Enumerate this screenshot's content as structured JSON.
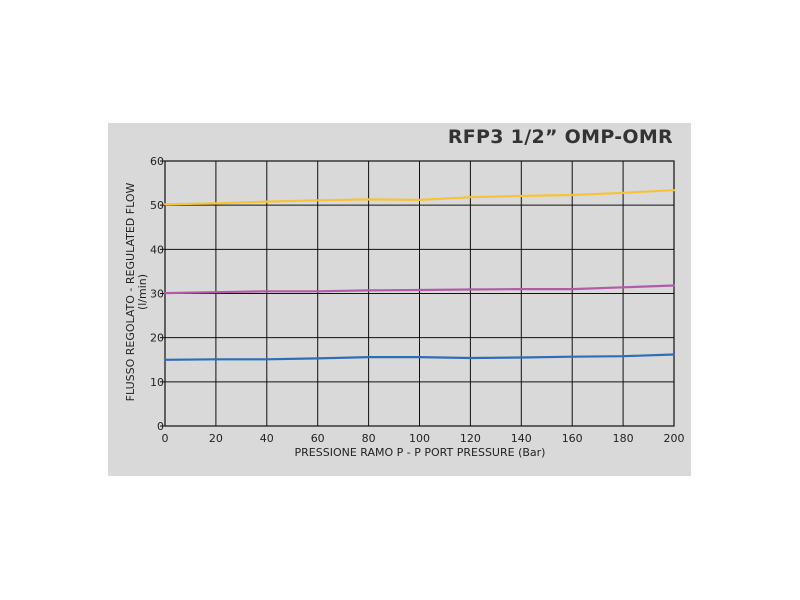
{
  "chart_data": {
    "type": "line",
    "title": "RFP3 1/2” OMP-OMR",
    "xlabel": "PRESSIONE RAMO P - P PORT PRESSURE (Bar)",
    "ylabel": "FLUSSO REGOLATO - REGULATED FLOW",
    "ylabel_unit": "(l/min)",
    "xlim": [
      0,
      200
    ],
    "ylim": [
      0,
      60
    ],
    "x_ticks": [
      "0",
      "20",
      "40",
      "60",
      "80",
      "100",
      "120",
      "140",
      "160",
      "180",
      "200"
    ],
    "y_ticks": [
      "0",
      "10",
      "20",
      "30",
      "40",
      "50",
      "60"
    ],
    "grid": true,
    "series": [
      {
        "color": "#f5c33b",
        "x": [
          0,
          20,
          40,
          60,
          80,
          100,
          120,
          140,
          160,
          180,
          200
        ],
        "y": [
          50.2,
          50.4,
          50.8,
          51.1,
          51.3,
          51.2,
          51.8,
          52.1,
          52.3,
          52.8,
          53.4
        ]
      },
      {
        "color": "#b05ca8",
        "x": [
          0,
          20,
          40,
          60,
          80,
          100,
          120,
          140,
          160,
          180,
          200
        ],
        "y": [
          30.1,
          30.3,
          30.5,
          30.5,
          30.7,
          30.8,
          30.9,
          31.0,
          31.0,
          31.4,
          31.8
        ]
      },
      {
        "color": "#2f6db5",
        "x": [
          0,
          20,
          40,
          60,
          80,
          100,
          120,
          140,
          160,
          180,
          200
        ],
        "y": [
          15.0,
          15.1,
          15.1,
          15.3,
          15.6,
          15.6,
          15.4,
          15.5,
          15.7,
          15.8,
          16.2
        ]
      }
    ]
  }
}
